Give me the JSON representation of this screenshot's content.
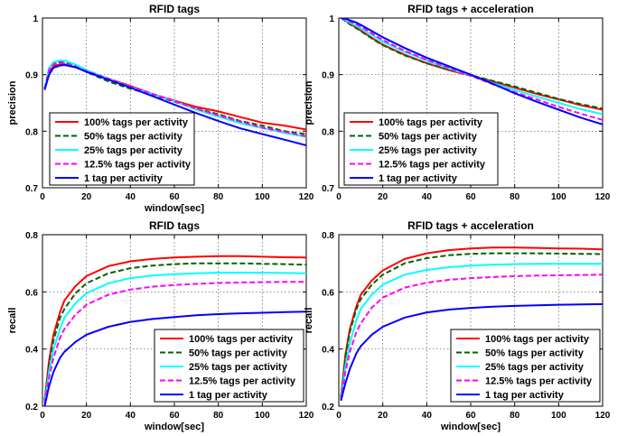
{
  "chart_data": [
    {
      "type": "line",
      "title": "RFID tags",
      "xlabel": "window[sec]",
      "ylabel": "precision",
      "xlim": [
        0,
        120
      ],
      "ylim": [
        0.7,
        1.0
      ],
      "xticks": [
        0,
        20,
        40,
        60,
        80,
        100,
        120
      ],
      "yticks": [
        0.7,
        0.8,
        0.9,
        1
      ],
      "grid": true,
      "legend_position": "bottom-left",
      "x": [
        1,
        3,
        5,
        8,
        10,
        15,
        20,
        30,
        40,
        50,
        60,
        70,
        80,
        90,
        100,
        110,
        120
      ],
      "series": [
        {
          "name": "100% tags per activity",
          "color": "#ff0000",
          "dash": "solid",
          "values": [
            0.875,
            0.905,
            0.915,
            0.918,
            0.918,
            0.913,
            0.905,
            0.893,
            0.88,
            0.866,
            0.854,
            0.843,
            0.835,
            0.825,
            0.815,
            0.81,
            0.803
          ]
        },
        {
          "name": "50% tags per activity",
          "color": "#006400",
          "dash": "dashed",
          "values": [
            0.875,
            0.91,
            0.92,
            0.922,
            0.921,
            0.915,
            0.905,
            0.888,
            0.875,
            0.864,
            0.852,
            0.84,
            0.83,
            0.818,
            0.81,
            0.8,
            0.795
          ]
        },
        {
          "name": "25% tags per activity",
          "color": "#00ffff",
          "dash": "solid",
          "values": [
            0.875,
            0.912,
            0.922,
            0.925,
            0.925,
            0.918,
            0.908,
            0.893,
            0.878,
            0.866,
            0.853,
            0.838,
            0.826,
            0.814,
            0.806,
            0.797,
            0.79
          ]
        },
        {
          "name": "12.5% tags per activity",
          "color": "#ff00ff",
          "dash": "dashed",
          "values": [
            0.875,
            0.908,
            0.918,
            0.921,
            0.92,
            0.914,
            0.906,
            0.893,
            0.879,
            0.866,
            0.853,
            0.84,
            0.828,
            0.817,
            0.806,
            0.799,
            0.791
          ]
        },
        {
          "name": "1 tag per activity",
          "color": "#0000ff",
          "dash": "solid",
          "values": [
            0.873,
            0.9,
            0.912,
            0.916,
            0.917,
            0.913,
            0.905,
            0.891,
            0.877,
            0.862,
            0.847,
            0.832,
            0.818,
            0.805,
            0.795,
            0.785,
            0.775
          ]
        }
      ]
    },
    {
      "type": "line",
      "title": "RFID tags + acceleration",
      "xlabel": "",
      "ylabel": "precision",
      "xlim": [
        0,
        120
      ],
      "ylim": [
        0.7,
        1.0
      ],
      "xticks": [
        0,
        20,
        40,
        60,
        80,
        100,
        120
      ],
      "yticks": [
        0.7,
        0.8,
        0.9,
        1
      ],
      "grid": true,
      "legend_position": "bottom-left",
      "x": [
        1,
        3,
        5,
        8,
        10,
        15,
        20,
        30,
        40,
        50,
        60,
        70,
        80,
        90,
        100,
        110,
        120
      ],
      "series": [
        {
          "name": "100% tags per activity",
          "color": "#ff0000",
          "dash": "solid",
          "values": [
            1.0,
            0.996,
            0.99,
            0.983,
            0.978,
            0.965,
            0.953,
            0.935,
            0.92,
            0.908,
            0.898,
            0.888,
            0.877,
            0.866,
            0.856,
            0.846,
            0.838
          ]
        },
        {
          "name": "50% tags per activity",
          "color": "#006400",
          "dash": "dashed",
          "values": [
            1.0,
            0.995,
            0.989,
            0.982,
            0.977,
            0.964,
            0.952,
            0.934,
            0.92,
            0.909,
            0.899,
            0.889,
            0.879,
            0.868,
            0.857,
            0.848,
            0.84
          ]
        },
        {
          "name": "25% tags per activity",
          "color": "#00ffff",
          "dash": "solid",
          "values": [
            1.0,
            0.997,
            0.992,
            0.986,
            0.982,
            0.97,
            0.958,
            0.94,
            0.925,
            0.911,
            0.898,
            0.885,
            0.873,
            0.861,
            0.85,
            0.839,
            0.83
          ]
        },
        {
          "name": "12.5% tags per activity",
          "color": "#ff00ff",
          "dash": "dashed",
          "values": [
            1.0,
            0.998,
            0.994,
            0.989,
            0.985,
            0.973,
            0.961,
            0.942,
            0.926,
            0.912,
            0.898,
            0.883,
            0.869,
            0.856,
            0.843,
            0.831,
            0.82
          ]
        },
        {
          "name": "1 tag per activity",
          "color": "#0000ff",
          "dash": "solid",
          "values": [
            1.0,
            0.999,
            0.996,
            0.992,
            0.988,
            0.977,
            0.966,
            0.947,
            0.93,
            0.915,
            0.9,
            0.884,
            0.867,
            0.852,
            0.838,
            0.824,
            0.812
          ]
        }
      ]
    },
    {
      "type": "line",
      "title": "RFID tags",
      "xlabel": "window[sec]",
      "ylabel": "recall",
      "xlim": [
        0,
        120
      ],
      "ylim": [
        0.2,
        0.8
      ],
      "xticks": [
        0,
        20,
        40,
        60,
        80,
        100,
        120
      ],
      "yticks": [
        0.2,
        0.4,
        0.6,
        0.8
      ],
      "grid": true,
      "legend_position": "bottom-right",
      "x": [
        1,
        3,
        5,
        8,
        10,
        15,
        20,
        30,
        40,
        50,
        60,
        70,
        80,
        90,
        100,
        110,
        120
      ],
      "series": [
        {
          "name": "100% tags per activity",
          "color": "#ff0000",
          "dash": "solid",
          "values": [
            0.22,
            0.36,
            0.45,
            0.53,
            0.57,
            0.62,
            0.655,
            0.69,
            0.707,
            0.715,
            0.72,
            0.723,
            0.725,
            0.725,
            0.723,
            0.721,
            0.72
          ]
        },
        {
          "name": "50% tags per activity",
          "color": "#006400",
          "dash": "dashed",
          "values": [
            0.22,
            0.34,
            0.43,
            0.51,
            0.54,
            0.595,
            0.63,
            0.665,
            0.683,
            0.692,
            0.697,
            0.7,
            0.7,
            0.7,
            0.698,
            0.697,
            0.695
          ]
        },
        {
          "name": "25% tags per activity",
          "color": "#00ffff",
          "dash": "solid",
          "values": [
            0.21,
            0.32,
            0.4,
            0.47,
            0.51,
            0.56,
            0.595,
            0.63,
            0.648,
            0.657,
            0.662,
            0.665,
            0.667,
            0.667,
            0.667,
            0.666,
            0.665
          ]
        },
        {
          "name": "12.5% tags per activity",
          "color": "#ff00ff",
          "dash": "dashed",
          "values": [
            0.21,
            0.3,
            0.37,
            0.44,
            0.47,
            0.52,
            0.555,
            0.59,
            0.608,
            0.618,
            0.624,
            0.628,
            0.631,
            0.633,
            0.634,
            0.635,
            0.635
          ]
        },
        {
          "name": "1 tag per activity",
          "color": "#0000ff",
          "dash": "solid",
          "values": [
            0.2,
            0.27,
            0.32,
            0.37,
            0.39,
            0.425,
            0.45,
            0.478,
            0.495,
            0.505,
            0.512,
            0.518,
            0.522,
            0.525,
            0.527,
            0.529,
            0.531
          ]
        }
      ]
    },
    {
      "type": "line",
      "title": "RFID tags + acceleration",
      "xlabel": "window[sec]",
      "ylabel": "recall",
      "xlim": [
        0,
        120
      ],
      "ylim": [
        0.2,
        0.8
      ],
      "xticks": [
        0,
        20,
        40,
        60,
        80,
        100,
        120
      ],
      "yticks": [
        0.2,
        0.4,
        0.6,
        0.8
      ],
      "grid": true,
      "legend_position": "bottom-right",
      "x": [
        1,
        3,
        5,
        8,
        10,
        15,
        20,
        30,
        40,
        50,
        60,
        70,
        80,
        90,
        100,
        110,
        120
      ],
      "series": [
        {
          "name": "100% tags per activity",
          "color": "#ff0000",
          "dash": "solid",
          "values": [
            0.23,
            0.38,
            0.47,
            0.55,
            0.59,
            0.64,
            0.675,
            0.715,
            0.735,
            0.746,
            0.752,
            0.755,
            0.755,
            0.754,
            0.752,
            0.751,
            0.749
          ]
        },
        {
          "name": "50% tags per activity",
          "color": "#006400",
          "dash": "dashed",
          "values": [
            0.23,
            0.37,
            0.46,
            0.54,
            0.575,
            0.625,
            0.66,
            0.7,
            0.718,
            0.728,
            0.733,
            0.735,
            0.735,
            0.735,
            0.734,
            0.733,
            0.732
          ]
        },
        {
          "name": "25% tags per activity",
          "color": "#00ffff",
          "dash": "solid",
          "values": [
            0.22,
            0.34,
            0.42,
            0.5,
            0.54,
            0.59,
            0.625,
            0.66,
            0.677,
            0.686,
            0.692,
            0.695,
            0.697,
            0.698,
            0.698,
            0.698,
            0.698
          ]
        },
        {
          "name": "12.5% tags per activity",
          "color": "#ff00ff",
          "dash": "dashed",
          "values": [
            0.22,
            0.32,
            0.39,
            0.46,
            0.49,
            0.545,
            0.58,
            0.615,
            0.632,
            0.642,
            0.648,
            0.652,
            0.655,
            0.657,
            0.658,
            0.659,
            0.66
          ]
        },
        {
          "name": "1 tag per activity",
          "color": "#0000ff",
          "dash": "solid",
          "values": [
            0.22,
            0.28,
            0.33,
            0.385,
            0.41,
            0.45,
            0.478,
            0.51,
            0.528,
            0.538,
            0.544,
            0.548,
            0.551,
            0.553,
            0.555,
            0.556,
            0.557
          ]
        }
      ]
    }
  ]
}
